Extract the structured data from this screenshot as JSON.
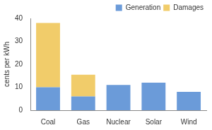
{
  "chart_data": {
    "type": "bar",
    "stacked": true,
    "y_label": "cents per kWh",
    "categories": [
      "Coal",
      "Gas",
      "Nuclear",
      "Solar",
      "Wind"
    ],
    "series": [
      {
        "name": "Generation",
        "color": "#6b9bd9",
        "values": [
          10,
          6,
          11,
          12,
          8
        ]
      },
      {
        "name": "Damages",
        "color": "#f1cc6a",
        "values": [
          28,
          9.5,
          0,
          0,
          0
        ]
      }
    ],
    "ylim": [
      0,
      40
    ],
    "yticks": [
      0,
      10,
      20,
      30,
      40
    ],
    "grid": false,
    "legend": "upper right"
  }
}
